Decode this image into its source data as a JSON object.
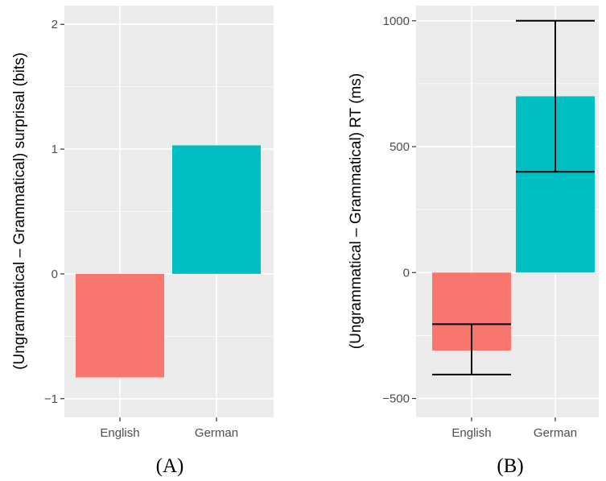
{
  "chart_data": [
    {
      "type": "bar",
      "categories": [
        "English",
        "German"
      ],
      "values": [
        -0.83,
        1.03
      ],
      "colors": [
        "#F8766D",
        "#00BFC4"
      ],
      "ylabel": "(Ungrammatical – Grammatical) surprisal (bits)",
      "ylim": [
        -1.15,
        2.15
      ],
      "yticks": [
        -1,
        0,
        1,
        2
      ],
      "ytick_labels": [
        "−1",
        "0",
        "1",
        "2"
      ],
      "grid": true,
      "caption": "(A)"
    },
    {
      "type": "bar",
      "categories": [
        "English",
        "German"
      ],
      "values": [
        -310,
        700
      ],
      "error_bars": [
        {
          "low": -405,
          "mid": -205,
          "high": -205
        },
        {
          "low": 400,
          "mid": 400,
          "high": 1000
        }
      ],
      "colors": [
        "#F8766D",
        "#00BFC4"
      ],
      "ylabel": "(Ungrammatical – Grammatical) RT (ms)",
      "ylim": [
        -575,
        1060
      ],
      "yticks": [
        -500,
        0,
        500,
        1000
      ],
      "ytick_labels": [
        "−500",
        "0",
        "500",
        "1000"
      ],
      "grid": true,
      "caption": "(B)"
    }
  ]
}
